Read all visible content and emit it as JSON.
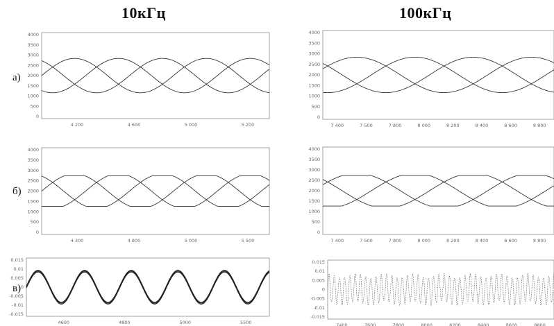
{
  "columns": [
    {
      "title": "10кГц"
    },
    {
      "title": "100кГц"
    }
  ],
  "row_labels": [
    "а)",
    "б)",
    "в)"
  ],
  "chart_data": [
    {
      "type": "line",
      "panel": "a-10k",
      "row_label": "а)",
      "column": "10кГц",
      "xlim": [
        4200,
        5980
      ],
      "ylim": [
        0,
        4000
      ],
      "yticks": [
        "4000",
        "3500",
        "3000",
        "2500",
        "2000",
        "1500",
        "1000",
        "500",
        "0"
      ],
      "xticks": [
        "4 200",
        "4 600",
        "5 000",
        "5 200"
      ],
      "series": [
        {
          "kind": "phase",
          "amplitude": 800,
          "offset": 2000,
          "period": 1030,
          "phases": [
            0,
            120,
            240
          ]
        }
      ],
      "clip": [
        1200,
        2800
      ]
    },
    {
      "type": "line",
      "panel": "a-100k",
      "row_label": "а)",
      "column": "100кГц",
      "xlim": [
        7270,
        8740
      ],
      "ylim": [
        0,
        4000
      ],
      "yticks": [
        "4000",
        "3500",
        "3000",
        "2500",
        "2000",
        "1500",
        "1000",
        "500",
        "0"
      ],
      "xticks": [
        "7 400",
        "7 500",
        "7 800",
        "8 000",
        "8 200",
        "8 400",
        "8 600",
        "8 800"
      ],
      "series": [
        {
          "kind": "phase",
          "amplitude": 800,
          "offset": 2000,
          "period": 1110,
          "phases": [
            20,
            140,
            260
          ]
        }
      ],
      "clip": [
        1200,
        2800
      ]
    },
    {
      "type": "line",
      "panel": "b-10k",
      "row_label": "б)",
      "column": "10кГц",
      "xlim": [
        4200,
        5980
      ],
      "ylim": [
        0,
        4000
      ],
      "yticks": [
        "4000",
        "3500",
        "3000",
        "2500",
        "2000",
        "1500",
        "1000",
        "500",
        "0"
      ],
      "xticks": [
        "4 300",
        "4 800",
        "5 000",
        "5 500"
      ],
      "series": [
        {
          "kind": "phase",
          "amplitude": 800,
          "offset": 2000,
          "period": 1030,
          "phases": [
            0,
            120,
            240
          ]
        }
      ],
      "clip": [
        1300,
        2700
      ]
    },
    {
      "type": "line",
      "panel": "b-100k",
      "row_label": "б)",
      "column": "100кГц",
      "xlim": [
        7270,
        8740
      ],
      "ylim": [
        0,
        4000
      ],
      "yticks": [
        "4000",
        "3500",
        "3000",
        "2500",
        "2000",
        "1500",
        "1000",
        "500",
        "0"
      ],
      "xticks": [
        "7 400",
        "7 500",
        "7 800",
        "8 000",
        "8 200",
        "8 400",
        "8 600",
        "8 800"
      ],
      "series": [
        {
          "kind": "phase",
          "amplitude": 800,
          "offset": 2000,
          "period": 1110,
          "phases": [
            20,
            140,
            260
          ]
        }
      ],
      "clip": [
        1300,
        2700
      ]
    },
    {
      "type": "line",
      "panel": "c-10k",
      "row_label": "в)",
      "column": "10кГц",
      "xlim": [
        4260,
        5980
      ],
      "ylim": [
        -0.02,
        0.02
      ],
      "yticks": [
        "0.015",
        "0.01",
        "0.005",
        "0",
        "-0.005",
        "-0.01",
        "-0.015"
      ],
      "xticks": [
        "4600",
        "4800",
        "5000",
        "5500"
      ],
      "series": [
        {
          "kind": "sine",
          "amplitude": 0.011,
          "period": 330,
          "thickness": 3
        }
      ]
    },
    {
      "type": "line",
      "panel": "c-100k",
      "row_label": "в)",
      "column": "100кГц",
      "xlim": [
        7270,
        8740
      ],
      "ylim": [
        -0.02,
        0.02
      ],
      "yticks": [
        "0.015",
        "0.01",
        "0.005",
        "0",
        "-0.005",
        "-0.01",
        "-0.015"
      ],
      "xticks": [
        "7400",
        "7600",
        "7800",
        "8000",
        "8200",
        "8400",
        "8600",
        "8800"
      ],
      "series": [
        {
          "kind": "noise",
          "amplitude": 0.011,
          "period": 34,
          "dotted": true
        }
      ]
    }
  ]
}
